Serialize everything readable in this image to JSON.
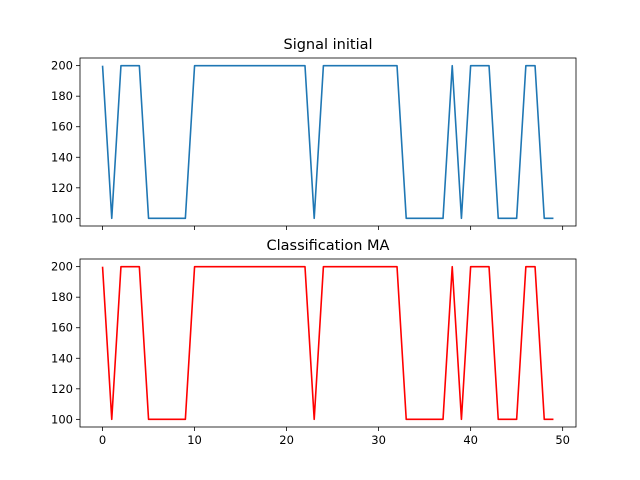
{
  "chart_data": [
    {
      "type": "line",
      "title": "Signal initial",
      "xlabel": "",
      "ylabel": "",
      "xlim": [
        -2.45,
        51.45
      ],
      "ylim": [
        95,
        205
      ],
      "x_ticks": [
        0,
        10,
        20,
        30,
        40,
        50
      ],
      "x_tick_labels_shown": false,
      "y_ticks": [
        100,
        120,
        140,
        160,
        180,
        200
      ],
      "grid": false,
      "legend": "none",
      "series": [
        {
          "color": "#1f77b4",
          "x": [
            0,
            1,
            2,
            3,
            4,
            5,
            6,
            7,
            8,
            9,
            10,
            11,
            12,
            13,
            14,
            15,
            16,
            17,
            18,
            19,
            20,
            21,
            22,
            23,
            24,
            25,
            26,
            27,
            28,
            29,
            30,
            31,
            32,
            33,
            34,
            35,
            36,
            37,
            38,
            39,
            40,
            41,
            42,
            43,
            44,
            45,
            46,
            47,
            48,
            49
          ],
          "values": [
            200,
            100,
            200,
            200,
            200,
            100,
            100,
            100,
            100,
            100,
            200,
            200,
            200,
            200,
            200,
            200,
            200,
            200,
            200,
            200,
            200,
            200,
            200,
            100,
            200,
            200,
            200,
            200,
            200,
            200,
            200,
            200,
            200,
            100,
            100,
            100,
            100,
            100,
            200,
            100,
            200,
            200,
            200,
            100,
            100,
            100,
            200,
            200,
            100,
            100
          ]
        }
      ]
    },
    {
      "type": "line",
      "title": "Classification  MA",
      "xlabel": "",
      "ylabel": "",
      "xlim": [
        -2.45,
        51.45
      ],
      "ylim": [
        95,
        205
      ],
      "x_ticks": [
        0,
        10,
        20,
        30,
        40,
        50
      ],
      "x_tick_labels_shown": true,
      "y_ticks": [
        100,
        120,
        140,
        160,
        180,
        200
      ],
      "grid": false,
      "legend": "none",
      "series": [
        {
          "color": "#ff0000",
          "x": [
            0,
            1,
            2,
            3,
            4,
            5,
            6,
            7,
            8,
            9,
            10,
            11,
            12,
            13,
            14,
            15,
            16,
            17,
            18,
            19,
            20,
            21,
            22,
            23,
            24,
            25,
            26,
            27,
            28,
            29,
            30,
            31,
            32,
            33,
            34,
            35,
            36,
            37,
            38,
            39,
            40,
            41,
            42,
            43,
            44,
            45,
            46,
            47,
            48,
            49
          ],
          "values": [
            200,
            100,
            200,
            200,
            200,
            100,
            100,
            100,
            100,
            100,
            200,
            200,
            200,
            200,
            200,
            200,
            200,
            200,
            200,
            200,
            200,
            200,
            200,
            100,
            200,
            200,
            200,
            200,
            200,
            200,
            200,
            200,
            200,
            100,
            100,
            100,
            100,
            100,
            200,
            100,
            200,
            200,
            200,
            100,
            100,
            100,
            200,
            200,
            100,
            100
          ]
        }
      ]
    }
  ]
}
